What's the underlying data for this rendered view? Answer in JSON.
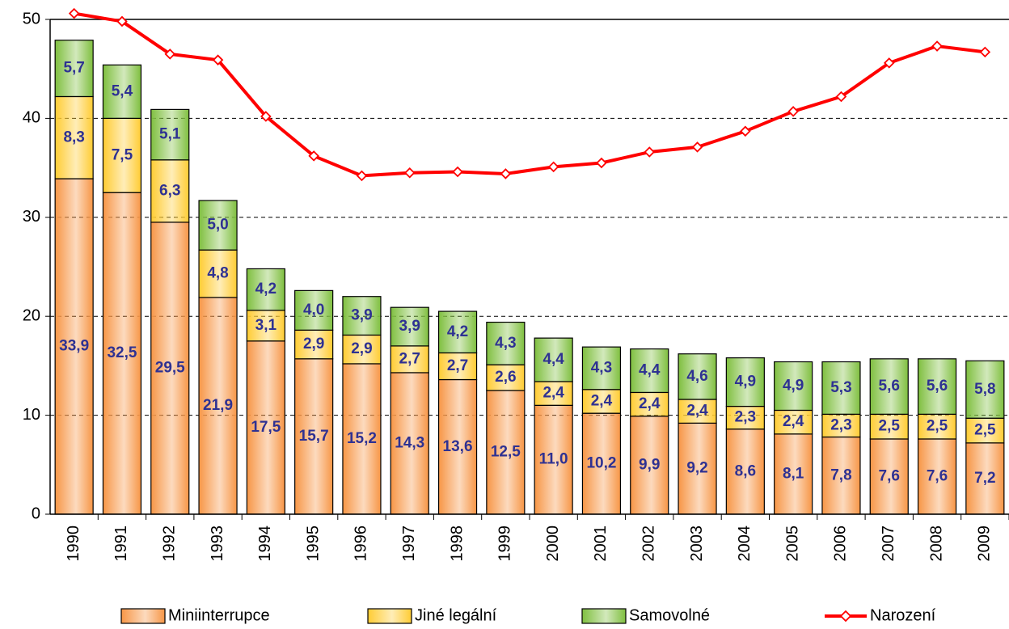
{
  "chart_data": {
    "type": "stacked-bar-line",
    "categories": [
      "1990",
      "1991",
      "1992",
      "1993",
      "1994",
      "1995",
      "1996",
      "1997",
      "1998",
      "1999",
      "2000",
      "2001",
      "2002",
      "2003",
      "2004",
      "2005",
      "2006",
      "2007",
      "2008",
      "2009"
    ],
    "series": [
      {
        "name": "Miniinterrupce",
        "type": "bar",
        "color": "#f79646",
        "values": [
          33.9,
          32.5,
          29.5,
          21.9,
          17.5,
          15.7,
          15.2,
          14.3,
          13.6,
          12.5,
          11.0,
          10.2,
          9.9,
          9.2,
          8.6,
          8.1,
          7.8,
          7.6,
          7.6,
          7.2
        ],
        "value_labels": [
          "33,9",
          "32,5",
          "29,5",
          "21,9",
          "17,5",
          "15,7",
          "15,2",
          "14,3",
          "13,6",
          "12,5",
          "11,0",
          "10,2",
          "9,9",
          "9,2",
          "8,6",
          "8,1",
          "7,8",
          "7,6",
          "7,6",
          "7,2"
        ]
      },
      {
        "name": "Jiné legální",
        "type": "bar",
        "color": "#ffcc33",
        "values": [
          8.3,
          7.5,
          6.3,
          4.8,
          3.1,
          2.9,
          2.9,
          2.7,
          2.7,
          2.6,
          2.4,
          2.4,
          2.4,
          2.4,
          2.3,
          2.4,
          2.3,
          2.5,
          2.5,
          2.5
        ],
        "value_labels": [
          "8,3",
          "7,5",
          "6,3",
          "4,8",
          "3,1",
          "2,9",
          "2,9",
          "2,7",
          "2,7",
          "2,6",
          "2,4",
          "2,4",
          "2,4",
          "2,4",
          "2,3",
          "2,4",
          "2,3",
          "2,5",
          "2,5",
          "2,5"
        ]
      },
      {
        "name": "Samovolné",
        "type": "bar",
        "color": "#7fbf3f",
        "values": [
          5.7,
          5.4,
          5.1,
          5.0,
          4.2,
          4.0,
          3.9,
          3.9,
          4.2,
          4.3,
          4.4,
          4.3,
          4.4,
          4.6,
          4.9,
          4.9,
          5.3,
          5.6,
          5.6,
          5.8
        ],
        "value_labels": [
          "5,7",
          "5,4",
          "5,1",
          "5,0",
          "4,2",
          "4,0",
          "3,9",
          "3,9",
          "4,2",
          "4,3",
          "4,4",
          "4,3",
          "4,4",
          "4,6",
          "4,9",
          "4,9",
          "5,3",
          "5,6",
          "5,6",
          "5,8"
        ]
      },
      {
        "name": "Narození",
        "type": "line",
        "color": "#ff0000",
        "values": [
          50.6,
          49.8,
          46.5,
          45.9,
          40.2,
          36.2,
          34.2,
          34.5,
          34.6,
          34.4,
          35.1,
          35.5,
          36.6,
          37.1,
          38.7,
          40.7,
          42.2,
          45.6,
          47.3,
          46.7
        ]
      }
    ],
    "ylim": [
      0,
      50
    ],
    "yticks": [
      0,
      10,
      20,
      30,
      40,
      50
    ],
    "grid": true,
    "legend": "bottom"
  }
}
